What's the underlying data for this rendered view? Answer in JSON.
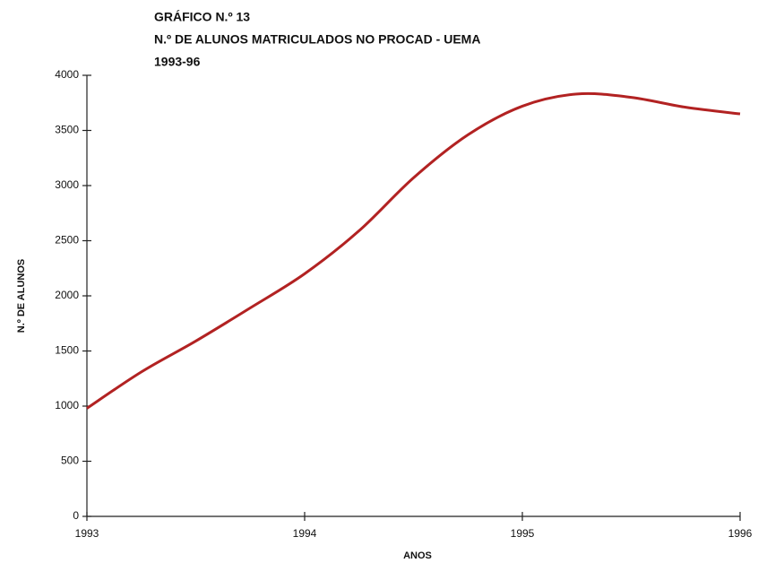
{
  "chart_data": {
    "type": "line",
    "title": [
      "GRÁFICO N.º 13",
      "N.º DE ALUNOS MATRICULADOS NO PROCAD - UEMA",
      "1993-96"
    ],
    "x_label": "ANOS",
    "y_label": "N.º DE ALUNOS",
    "x": [
      1993,
      1993.25,
      1993.5,
      1993.75,
      1994,
      1994.25,
      1994.5,
      1994.75,
      1995,
      1995.25,
      1995.5,
      1995.75,
      1996
    ],
    "series": [
      {
        "name": "N.º DE ALUNOS",
        "color": "#b22222",
        "values": [
          980,
          1310,
          1590,
          1890,
          2200,
          2590,
          3070,
          3460,
          3720,
          3830,
          3800,
          3710,
          3650
        ]
      }
    ],
    "xlim": [
      1993,
      1996
    ],
    "xticks": [
      1993,
      1994,
      1995,
      1996
    ],
    "ylim": [
      0,
      4000
    ],
    "yticks": [
      0,
      500,
      1000,
      1500,
      2000,
      2500,
      3000,
      3500,
      4000
    ],
    "grid": false
  }
}
